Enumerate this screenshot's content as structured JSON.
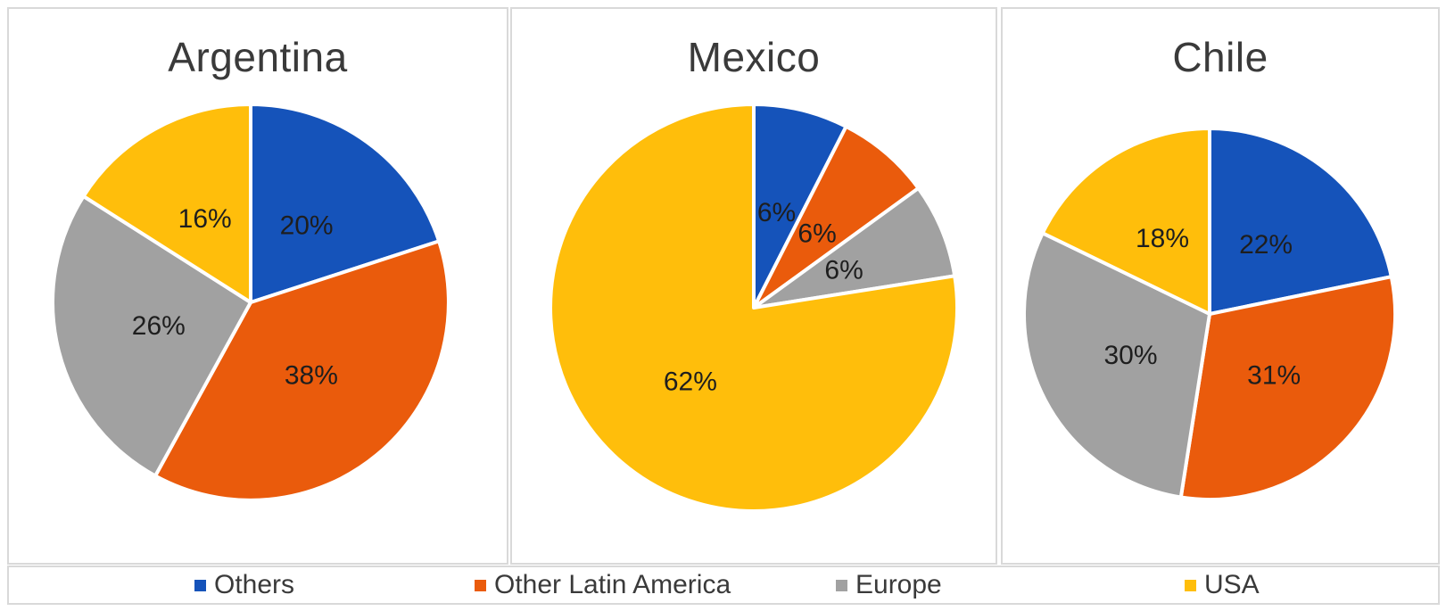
{
  "legend": {
    "items": [
      "Others",
      "Other Latin America",
      "Europe",
      "USA"
    ]
  },
  "colors": {
    "others": "#1553BA",
    "other_latin_america": "#EA5B0C",
    "europe": "#A1A1A1",
    "usa": "#FFBE0B",
    "panel_border": "#D9D9D9",
    "title_text": "#3A3A3A",
    "data_label_text": "#1E1E1E"
  },
  "chart_data": [
    {
      "type": "pie",
      "title": "Argentina",
      "labels": [
        "Others",
        "Other Latin America",
        "Europe",
        "USA"
      ],
      "values": [
        20,
        38,
        26,
        16
      ],
      "data_labels": [
        "20%",
        "38%",
        "26%",
        "16%"
      ],
      "colors": [
        "#1553BA",
        "#EA5B0C",
        "#A1A1A1",
        "#FFBE0B"
      ],
      "start_angle_deg": 0,
      "direction": "clockwise",
      "legend_position": "bottom"
    },
    {
      "type": "pie",
      "title": "Mexico",
      "labels": [
        "Others",
        "Other Latin America",
        "Europe",
        "USA"
      ],
      "values": [
        6,
        6,
        6,
        62
      ],
      "data_labels": [
        "6%",
        "6%",
        "6%",
        "62%"
      ],
      "colors": [
        "#1553BA",
        "#EA5B0C",
        "#A1A1A1",
        "#FFBE0B"
      ],
      "start_angle_deg": 0,
      "direction": "clockwise",
      "legend_position": "bottom"
    },
    {
      "type": "pie",
      "title": "Chile",
      "labels": [
        "Others",
        "Other Latin America",
        "Europe",
        "USA"
      ],
      "values": [
        22,
        31,
        30,
        18
      ],
      "data_labels": [
        "22%",
        "31%",
        "30%",
        "18%"
      ],
      "colors": [
        "#1553BA",
        "#EA5B0C",
        "#A1A1A1",
        "#FFBE0B"
      ],
      "start_angle_deg": 0,
      "direction": "clockwise",
      "legend_position": "bottom"
    }
  ]
}
